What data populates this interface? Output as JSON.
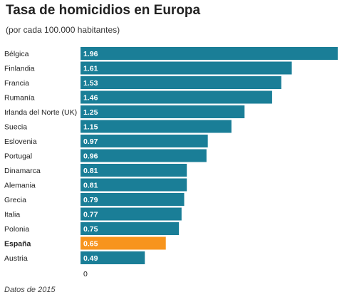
{
  "header": {
    "title": "Tasa de homicidios en Europa",
    "subtitle": "(por cada 100.000 habitantes)"
  },
  "footer": {
    "note": "Datos de 2015"
  },
  "colors": {
    "default_bar": "#1a7e97",
    "highlight_bar": "#f7941d"
  },
  "chart_data": {
    "type": "bar",
    "orientation": "horizontal",
    "categories": [
      "Bélgica",
      "Finlandia",
      "Francia",
      "Rumanía",
      "Irlanda del Norte (UK)",
      "Suecia",
      "Eslovenia",
      "Portugal",
      "Dinamarca",
      "Alemania",
      "Grecia",
      "Italia",
      "Polonia",
      "España",
      "Austria"
    ],
    "values": [
      1.96,
      1.61,
      1.53,
      1.46,
      1.25,
      1.15,
      0.97,
      0.96,
      0.81,
      0.81,
      0.79,
      0.77,
      0.75,
      0.65,
      0.49
    ],
    "value_labels": [
      "1.96",
      "1.61",
      "1.53",
      "1.46",
      "1.25",
      "1.15",
      "0.97",
      "0.96",
      "0.81",
      "0.81",
      "0.79",
      "0.77",
      "0.75",
      "0.65",
      "0.49"
    ],
    "highlight": [
      "España"
    ],
    "x_tick_labels": [
      "0"
    ],
    "xlim": [
      0,
      1.96
    ],
    "grid": false,
    "legend": "none"
  }
}
